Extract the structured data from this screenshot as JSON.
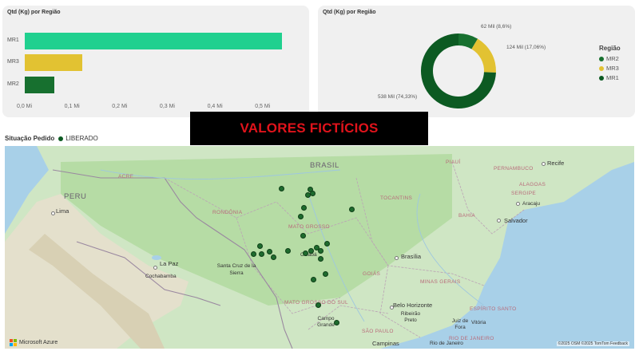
{
  "bar_chart": {
    "title": "Qtd (Kg) por Região",
    "categories": [
      "MR1",
      "MR3",
      "MR2"
    ],
    "values": [
      0.54,
      0.12,
      0.062
    ],
    "colors": [
      "#20d08f",
      "#e2c232",
      "#17702f"
    ],
    "ticks": [
      "0,0 Mi",
      "0,1 Mi",
      "0,2 Mi",
      "0,3 Mi",
      "0,4 Mi",
      "0,5 Mi"
    ],
    "xlim": [
      0,
      0.56
    ]
  },
  "donut_chart": {
    "title": "Qtd (Kg) por Região",
    "labels": [
      "62 Mil (8,6%)",
      "124 Mil (17,06%)",
      "538 Mil (74,33%)"
    ],
    "legend_title": "Região",
    "legend": [
      {
        "name": "MR2",
        "color": "#17702f"
      },
      {
        "name": "MR3",
        "color": "#e2c232"
      },
      {
        "name": "MR1",
        "color": "#0c5a22"
      }
    ]
  },
  "chart_data": [
    {
      "type": "bar",
      "title": "Qtd (Kg) por Região",
      "categories": [
        "MR1",
        "MR3",
        "MR2"
      ],
      "values": [
        538000,
        124000,
        62000
      ],
      "xlim": [
        0,
        560000
      ]
    },
    {
      "type": "pie",
      "title": "Qtd (Kg) por Região",
      "categories": [
        "MR2",
        "MR3",
        "MR1"
      ],
      "values": [
        62000,
        124000,
        538000
      ],
      "percentages": [
        8.6,
        17.06,
        74.33
      ]
    }
  ],
  "banner": {
    "text": "VALORES FICTÍCIOS"
  },
  "filter": {
    "title": "Situação Pedido",
    "value": "LIBERADO"
  },
  "map": {
    "countries": [
      "BRASIL",
      "PERU"
    ],
    "states": [
      "ACRE",
      "RONDÔNIA",
      "MATO GROSSO",
      "TOCANTINS",
      "PIAUÍ",
      "PERNAMBUCO",
      "ALAGOAS",
      "SERGIPE",
      "BAHIA",
      "GOIÁS",
      "MINAS GERAIS",
      "ESPÍRITO SANTO",
      "MATO GROSSO DO SUL",
      "SÃO PAULO",
      "RIO DE JANEIRO"
    ],
    "cities": [
      "Recife",
      "Aracaju",
      "Salvador",
      "Lima",
      "La Paz",
      "Cochabamba",
      "Santa Cruz de la Sierra",
      "Cuiabá",
      "Brasília",
      "Belo Horizonte",
      "Ribeirão Preto",
      "Juiz de Fora",
      "Vitória",
      "Campo Grande",
      "Campinas",
      "Rio de Janeiro"
    ],
    "attribution": "©2025 OSM ©2025 TomTom Feedback",
    "brand": "Microsoft Azure"
  }
}
